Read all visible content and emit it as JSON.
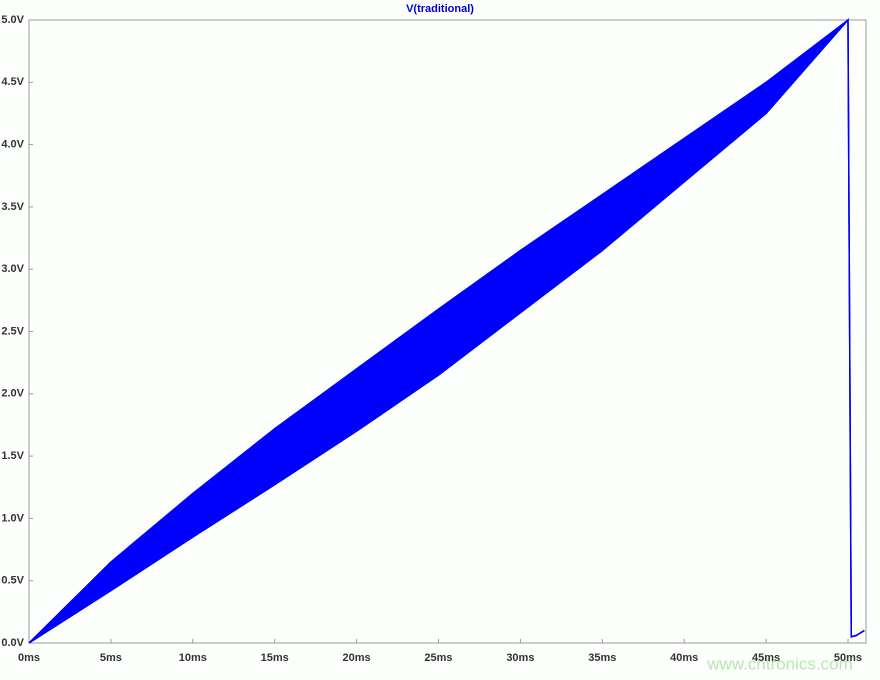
{
  "chart_data": {
    "type": "band",
    "title": "V(traditional)",
    "color": "#0000ff",
    "x": [
      0,
      5,
      10,
      15,
      20,
      25,
      30,
      35,
      40,
      45,
      50,
      50.2,
      50.5,
      51
    ],
    "upper": [
      0,
      0.65,
      1.2,
      1.72,
      2.2,
      2.68,
      3.15,
      3.6,
      4.05,
      4.5,
      5,
      0.05,
      0.06,
      0.1
    ],
    "lower": [
      0,
      0.42,
      0.85,
      1.27,
      1.7,
      2.15,
      2.65,
      3.15,
      3.7,
      4.25,
      5,
      0.05,
      0.06,
      0.1
    ],
    "xlim": [
      0,
      51.1
    ],
    "ylim": [
      0,
      5
    ],
    "xticks": [
      {
        "value": 0,
        "label": "0ms"
      },
      {
        "value": 5,
        "label": "5ms"
      },
      {
        "value": 10,
        "label": "10ms"
      },
      {
        "value": 15,
        "label": "15ms"
      },
      {
        "value": 20,
        "label": "20ms"
      },
      {
        "value": 25,
        "label": "25ms"
      },
      {
        "value": 30,
        "label": "30ms"
      },
      {
        "value": 35,
        "label": "35ms"
      },
      {
        "value": 40,
        "label": "40ms"
      },
      {
        "value": 45,
        "label": "45ms"
      },
      {
        "value": 50,
        "label": "50ms"
      }
    ],
    "yticks": [
      {
        "value": 0,
        "label": "0.0V"
      },
      {
        "value": 0.5,
        "label": "0.5V"
      },
      {
        "value": 1,
        "label": "1.0V"
      },
      {
        "value": 1.5,
        "label": "1.5V"
      },
      {
        "value": 2,
        "label": "2.0V"
      },
      {
        "value": 2.5,
        "label": "2.5V"
      },
      {
        "value": 3,
        "label": "3.0V"
      },
      {
        "value": 3.5,
        "label": "3.5V"
      },
      {
        "value": 4,
        "label": "4.0V"
      },
      {
        "value": 4.5,
        "label": "4.5V"
      },
      {
        "value": 5,
        "label": "5.0V"
      }
    ],
    "grid": false,
    "watermark": "www.cntronics.com"
  }
}
